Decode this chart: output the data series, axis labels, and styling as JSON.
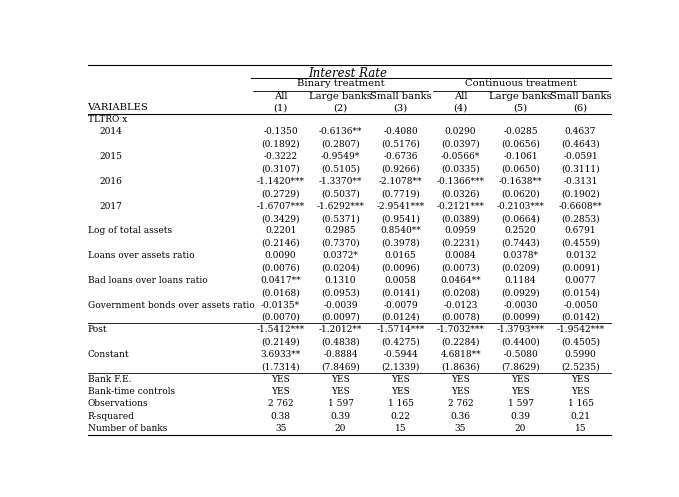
{
  "title": "Interest Rate",
  "col_headers": {
    "binary": "Binary treatment",
    "continuous": "Continuous treatment",
    "sub_cols": [
      "All",
      "Large banks",
      "Small banks"
    ],
    "col_nums": [
      "(1)",
      "(2)",
      "(3)",
      "(4)",
      "(5)",
      "(6)"
    ]
  },
  "variables_label": "VARIABLES",
  "rows": [
    {
      "label": "TLTRO x",
      "indent": 0,
      "values": [
        "",
        "",
        "",
        "",
        "",
        ""
      ],
      "is_section": true
    },
    {
      "label": "2014",
      "indent": 1,
      "values": [
        "-0.1350",
        "-0.6136**",
        "-0.4080",
        "0.0290",
        "-0.0285",
        "0.4637"
      ]
    },
    {
      "label": "",
      "indent": 1,
      "values": [
        "(0.1892)",
        "(0.2807)",
        "(0.5176)",
        "(0.0397)",
        "(0.0656)",
        "(0.4643)"
      ]
    },
    {
      "label": "2015",
      "indent": 1,
      "values": [
        "-0.3222",
        "-0.9549*",
        "-0.6736",
        "-0.0566*",
        "-0.1061",
        "-0.0591"
      ]
    },
    {
      "label": "",
      "indent": 1,
      "values": [
        "(0.3107)",
        "(0.5105)",
        "(0.9266)",
        "(0.0335)",
        "(0.0650)",
        "(0.3111)"
      ]
    },
    {
      "label": "2016",
      "indent": 1,
      "values": [
        "-1.1420***",
        "-1.3370**",
        "-2.1078**",
        "-0.1366***",
        "-0.1638**",
        "-0.3131"
      ]
    },
    {
      "label": "",
      "indent": 1,
      "values": [
        "(0.2729)",
        "(0.5037)",
        "(0.7719)",
        "(0.0326)",
        "(0.0620)",
        "(0.1902)"
      ]
    },
    {
      "label": "2017",
      "indent": 1,
      "values": [
        "-1.6707***",
        "-1.6292***",
        "-2.9541***",
        "-0.2121***",
        "-0.2103***",
        "-0.6608**"
      ]
    },
    {
      "label": "",
      "indent": 1,
      "values": [
        "(0.3429)",
        "(0.5371)",
        "(0.9541)",
        "(0.0389)",
        "(0.0664)",
        "(0.2853)"
      ]
    },
    {
      "label": "Log of total assets",
      "indent": 0,
      "values": [
        "0.2201",
        "0.2985",
        "0.8540**",
        "0.0959",
        "0.2520",
        "0.6791"
      ]
    },
    {
      "label": "",
      "indent": 0,
      "values": [
        "(0.2146)",
        "(0.7370)",
        "(0.3978)",
        "(0.2231)",
        "(0.7443)",
        "(0.4559)"
      ]
    },
    {
      "label": "Loans over assets ratio",
      "indent": 0,
      "values": [
        "0.0090",
        "0.0372*",
        "0.0165",
        "0.0084",
        "0.0378*",
        "0.0132"
      ]
    },
    {
      "label": "",
      "indent": 0,
      "values": [
        "(0.0076)",
        "(0.0204)",
        "(0.0096)",
        "(0.0073)",
        "(0.0209)",
        "(0.0091)"
      ]
    },
    {
      "label": "Bad loans over loans ratio",
      "indent": 0,
      "values": [
        "0.0417**",
        "0.1310",
        "0.0058",
        "0.0464**",
        "0.1184",
        "0.0077"
      ]
    },
    {
      "label": "",
      "indent": 0,
      "values": [
        "(0.0168)",
        "(0.0953)",
        "(0.0141)",
        "(0.0208)",
        "(0.0929)",
        "(0.0154)"
      ]
    },
    {
      "label": "Government bonds over assets ratio",
      "indent": 0,
      "values": [
        "-0.0135*",
        "-0.0039",
        "-0.0079",
        "-0.0123",
        "-0.0030",
        "-0.0050"
      ]
    },
    {
      "label": "",
      "indent": 0,
      "values": [
        "(0.0070)",
        "(0.0097)",
        "(0.0124)",
        "(0.0078)",
        "(0.0099)",
        "(0.0142)"
      ]
    },
    {
      "label": "Post",
      "indent": 0,
      "values": [
        "-1.5412***",
        "-1.2012**",
        "-1.5714***",
        "-1.7032***",
        "-1.3793***",
        "-1.9542***"
      ],
      "top_line": true
    },
    {
      "label": "",
      "indent": 0,
      "values": [
        "(0.2149)",
        "(0.4838)",
        "(0.4275)",
        "(0.2284)",
        "(0.4400)",
        "(0.4505)"
      ]
    },
    {
      "label": "Constant",
      "indent": 0,
      "values": [
        "3.6933**",
        "-0.8884",
        "-0.5944",
        "4.6818**",
        "-0.5080",
        "0.5990"
      ]
    },
    {
      "label": "",
      "indent": 0,
      "values": [
        "(1.7314)",
        "(7.8469)",
        "(2.1339)",
        "(1.8636)",
        "(7.8629)",
        "(2.5235)"
      ]
    },
    {
      "label": "Bank F.E.",
      "indent": 0,
      "values": [
        "YES",
        "YES",
        "YES",
        "YES",
        "YES",
        "YES"
      ],
      "top_line": true
    },
    {
      "label": "Bank-time controls",
      "indent": 0,
      "values": [
        "YES",
        "YES",
        "YES",
        "YES",
        "YES",
        "YES"
      ]
    },
    {
      "label": "Observations",
      "indent": 0,
      "values": [
        "2 762",
        "1 597",
        "1 165",
        "2 762",
        "1 597",
        "1 165"
      ]
    },
    {
      "label": "R-squared",
      "indent": 0,
      "values": [
        "0.38",
        "0.39",
        "0.22",
        "0.36",
        "0.39",
        "0.21"
      ]
    },
    {
      "label": "Number of banks",
      "indent": 0,
      "values": [
        "35",
        "20",
        "15",
        "35",
        "20",
        "15"
      ]
    }
  ]
}
